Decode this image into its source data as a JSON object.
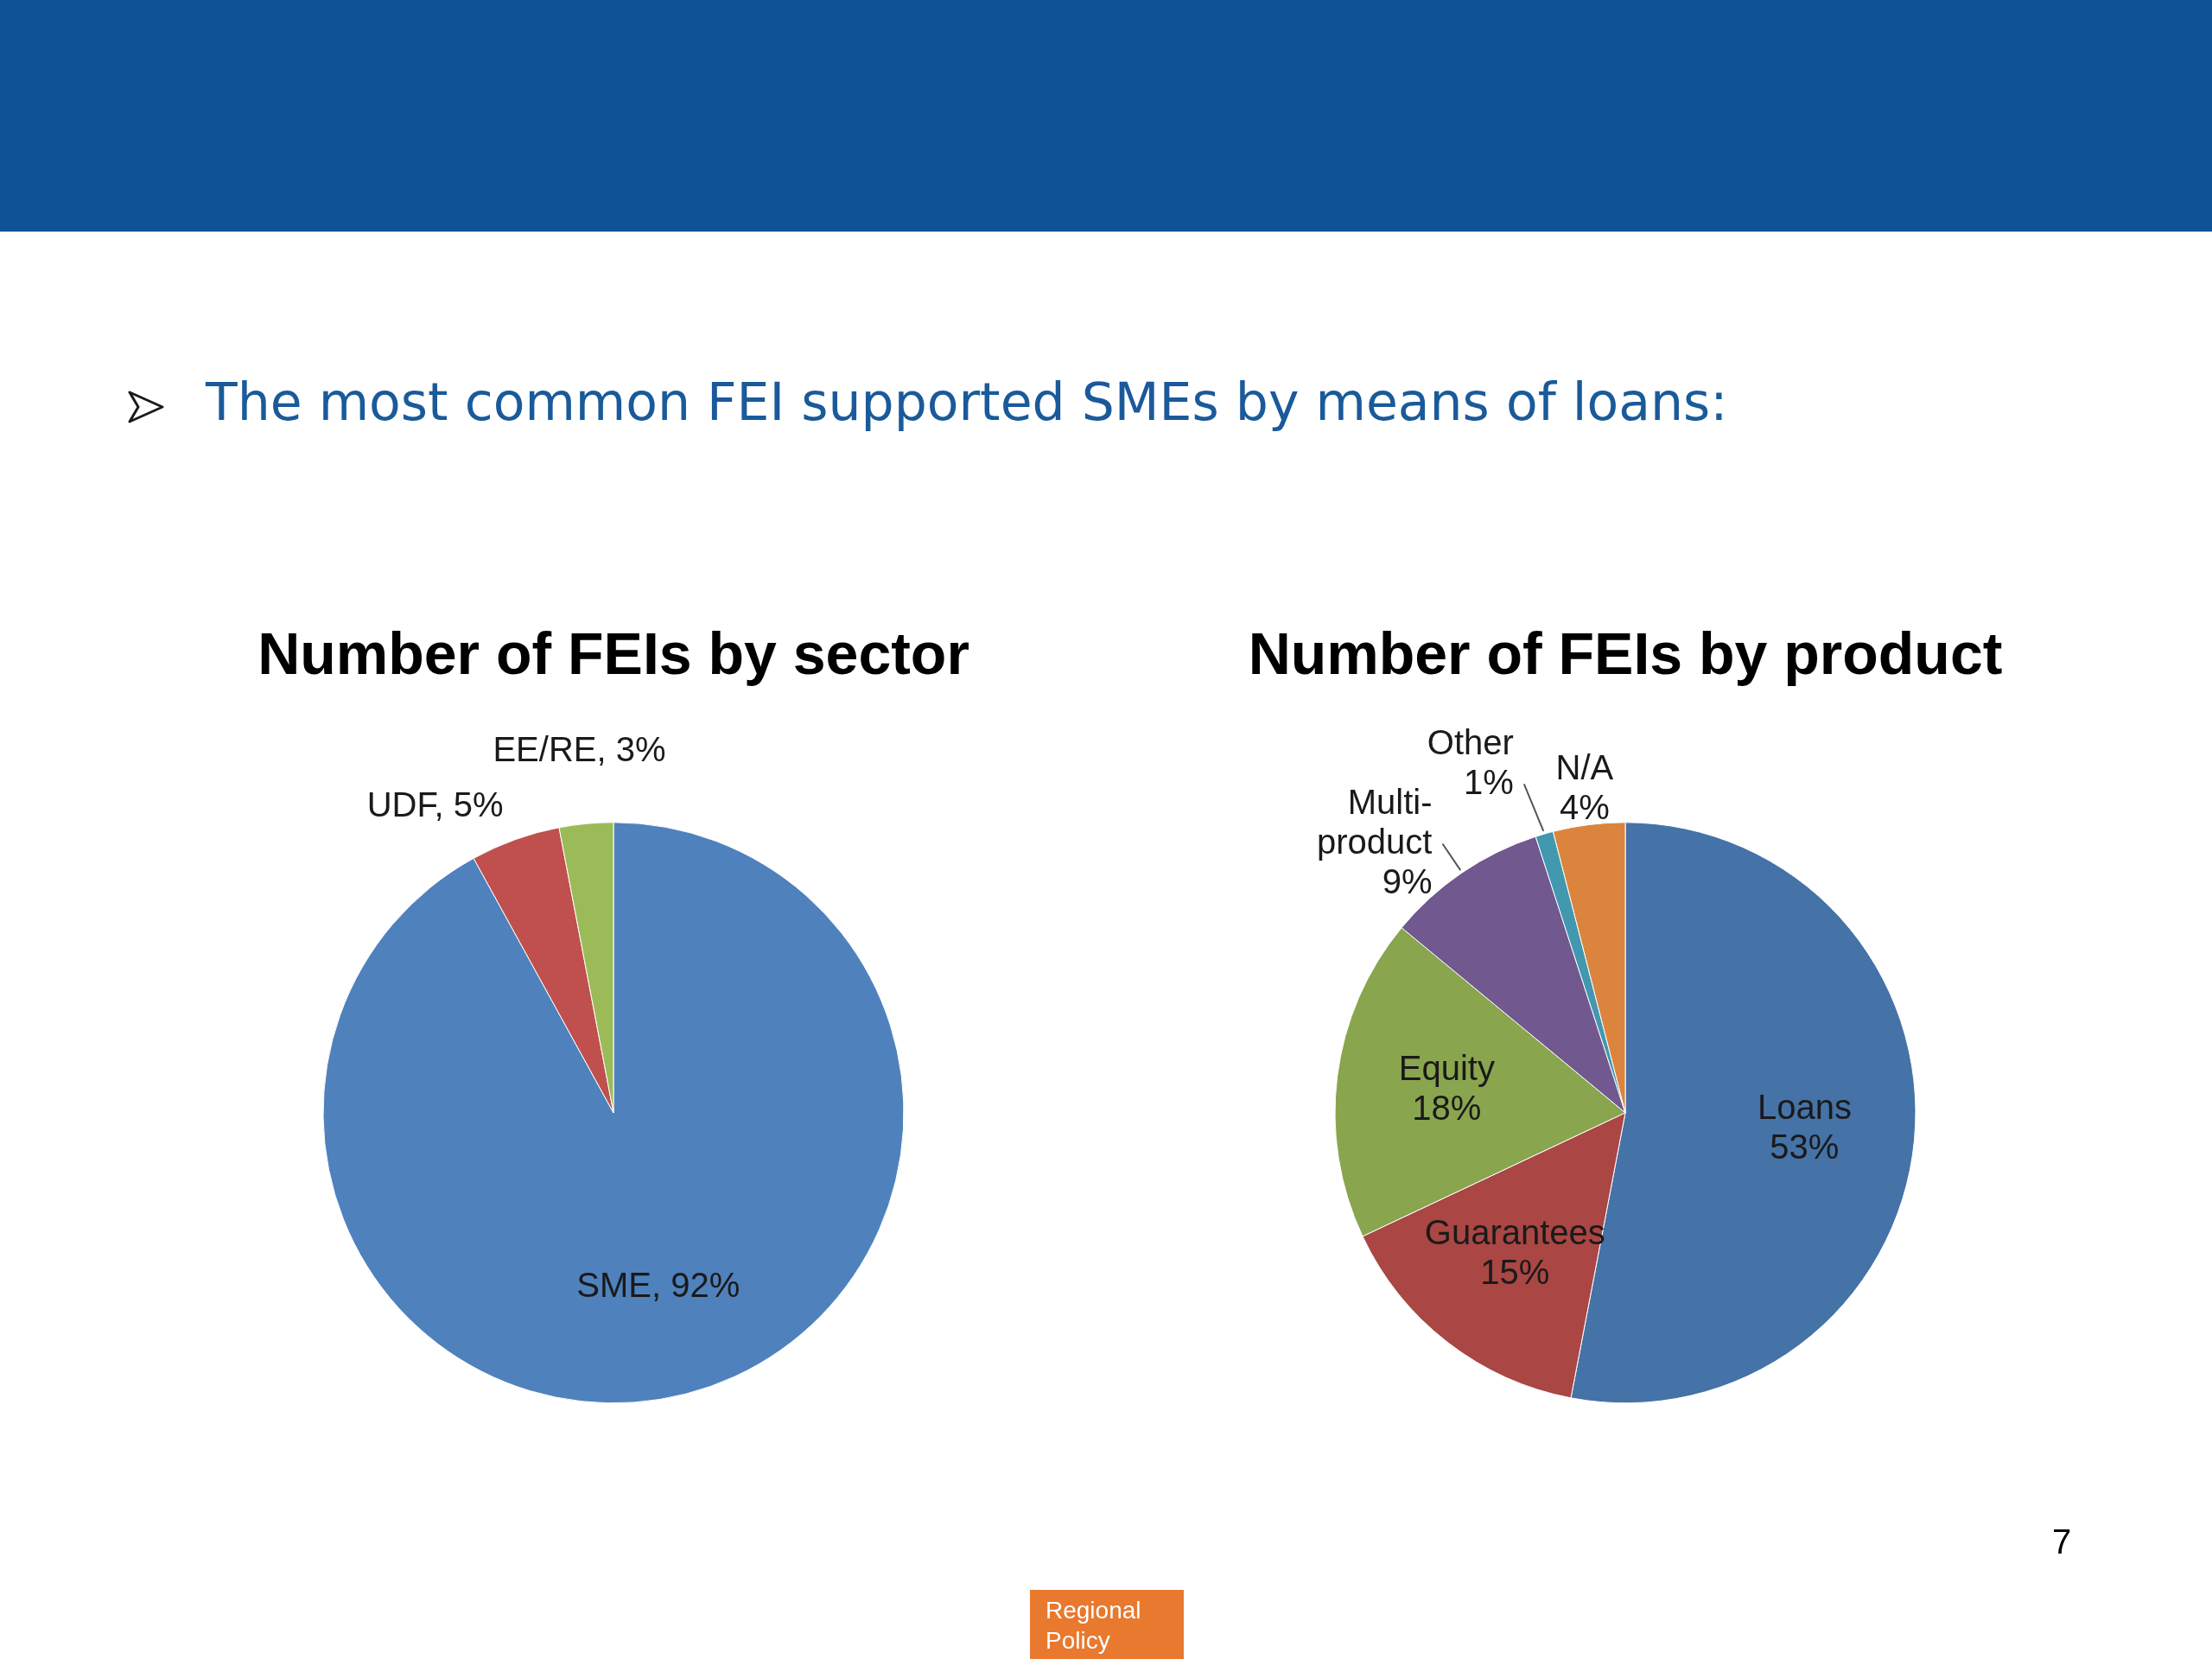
{
  "chart_data": [
    {
      "type": "pie",
      "title": "Number of FEIs by sector",
      "categories": [
        "SME",
        "UDF",
        "EE/RE"
      ],
      "values": [
        92,
        5,
        3
      ],
      "colors": [
        "#4f81bd",
        "#c0504d",
        "#9bbb59"
      ],
      "value_labels": [
        "92%",
        "5%",
        "3%"
      ],
      "legend": false,
      "annotations": [
        "The most common FEI supported SMEs by means of loans:",
        "7",
        "Regional Policy"
      ]
    },
    {
      "type": "pie",
      "title": "Number of FEIs by product",
      "categories": [
        "Loans",
        "Guarantees",
        "Equity",
        "Multi-product",
        "Other",
        "N/A"
      ],
      "values": [
        53,
        15,
        18,
        9,
        1,
        4
      ],
      "colors": [
        "#4572a7",
        "#aa4643",
        "#89a54e",
        "#71588f",
        "#4198af",
        "#db843d"
      ],
      "value_labels": [
        "53%",
        "15%",
        "18%",
        "9%",
        "1%",
        "4%"
      ],
      "legend": false
    }
  ]
}
